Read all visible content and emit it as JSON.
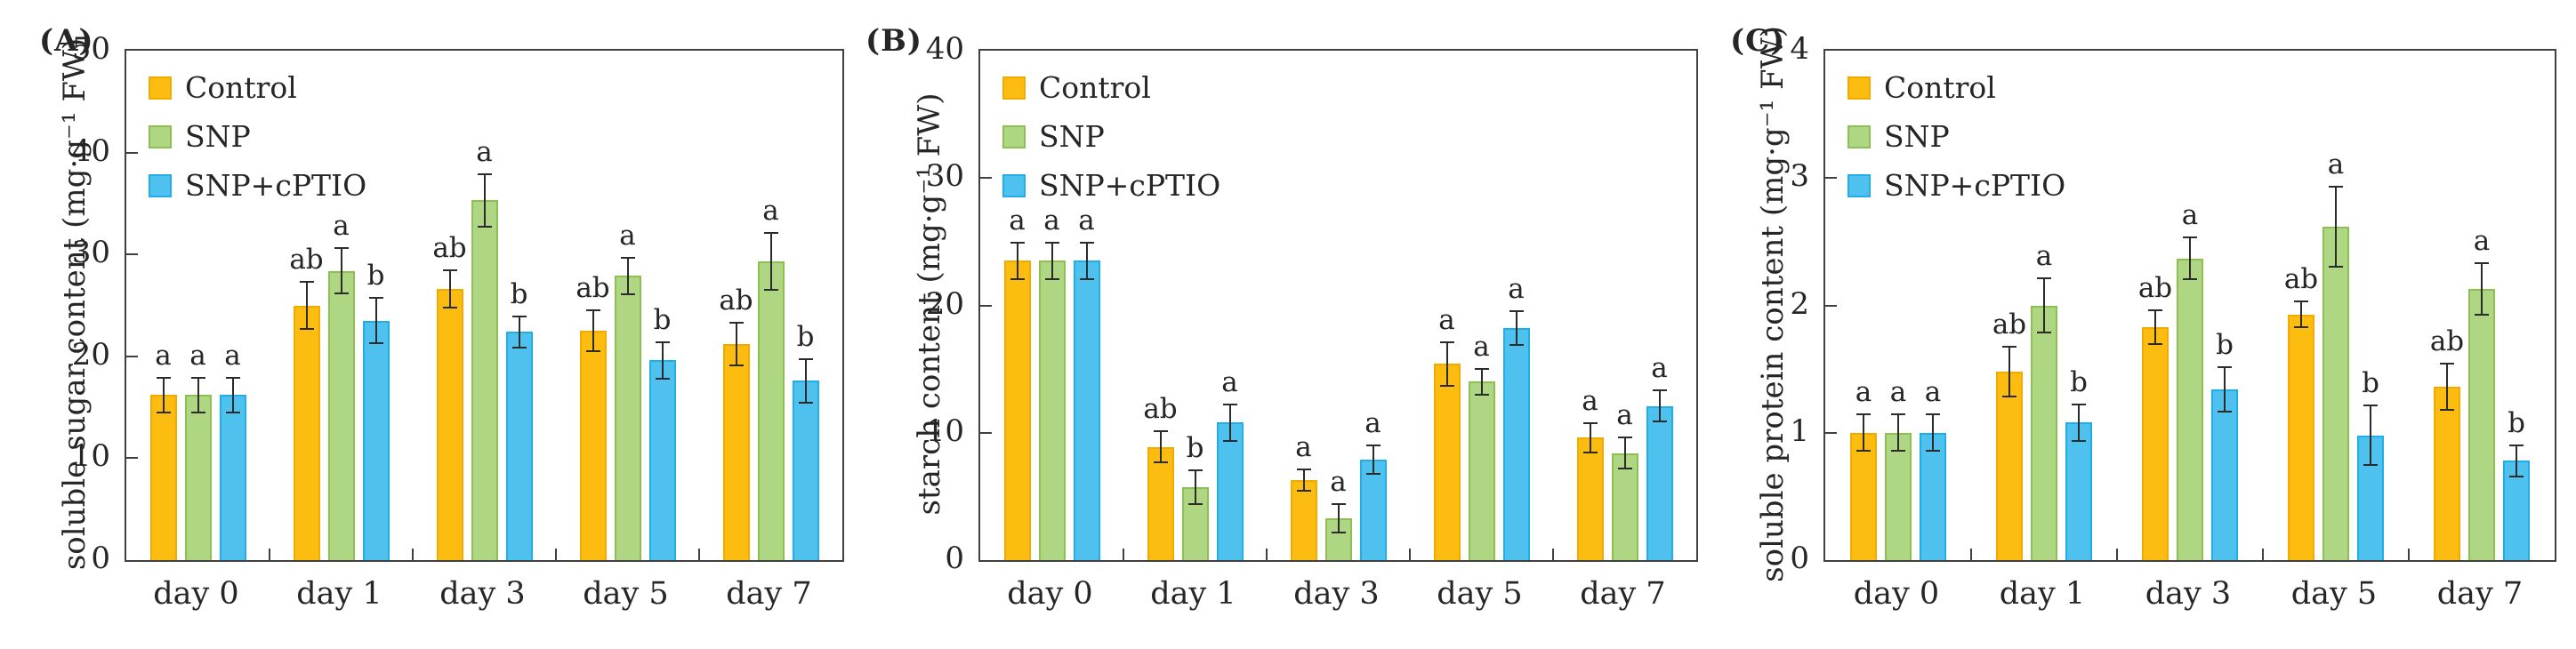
{
  "figure": {
    "background": "#ffffff",
    "axis_color": "#404040",
    "text_color": "#262626",
    "legend": {
      "position": "top-left",
      "items": [
        {
          "label": "Control",
          "fill": "#FDBD10",
          "border": "#F2A900"
        },
        {
          "label": "SNP",
          "fill": "#AFD683",
          "border": "#8CC152"
        },
        {
          "label": "SNP+cPTIO",
          "fill": "#4EC1EE",
          "border": "#1FAEE8"
        }
      ]
    }
  },
  "chart_data": [
    {
      "type": "bar",
      "panel_label": "(A)",
      "ylabel": "soluble sugar content (mg·g⁻¹ FW)",
      "ylim": [
        0,
        50
      ],
      "yticks": [
        0,
        10,
        20,
        30,
        40,
        50
      ],
      "categories": [
        "day 0",
        "day 1",
        "day 3",
        "day 5",
        "day 7"
      ],
      "grid": false,
      "legend_position": "top-left",
      "series": [
        {
          "name": "Control",
          "values": [
            16.2,
            25.0,
            26.6,
            22.5,
            21.2
          ],
          "errors": [
            1.8,
            2.4,
            1.9,
            2.1,
            2.2
          ],
          "sig_letters": [
            "a",
            "ab",
            "ab",
            "ab",
            "ab"
          ]
        },
        {
          "name": "SNP",
          "values": [
            16.2,
            28.4,
            35.3,
            27.9,
            29.3
          ],
          "errors": [
            1.8,
            2.3,
            2.7,
            1.9,
            2.9
          ],
          "sig_letters": [
            "a",
            "a",
            "a",
            "a",
            "a"
          ]
        },
        {
          "name": "SNP+cPTIO",
          "values": [
            16.2,
            23.5,
            22.4,
            19.6,
            17.6
          ],
          "errors": [
            1.8,
            2.3,
            1.6,
            1.9,
            2.2
          ],
          "sig_letters": [
            "a",
            "b",
            "b",
            "b",
            "b"
          ]
        }
      ]
    },
    {
      "type": "bar",
      "panel_label": "(B)",
      "ylabel": "starch content (mg·g⁻¹ FW)",
      "ylim": [
        0,
        40
      ],
      "yticks": [
        0,
        10,
        20,
        30,
        40
      ],
      "categories": [
        "day 0",
        "day 1",
        "day 3",
        "day 5",
        "day 7"
      ],
      "grid": false,
      "legend_position": "top-left",
      "series": [
        {
          "name": "Control",
          "values": [
            23.5,
            8.9,
            6.3,
            15.4,
            9.6
          ],
          "errors": [
            1.5,
            1.3,
            0.9,
            1.8,
            1.2
          ],
          "sig_letters": [
            "a",
            "ab",
            "a",
            "a",
            "a"
          ]
        },
        {
          "name": "SNP",
          "values": [
            23.5,
            5.7,
            3.3,
            14.0,
            8.4
          ],
          "errors": [
            1.5,
            1.4,
            1.2,
            1.1,
            1.3
          ],
          "sig_letters": [
            "a",
            "b",
            "a",
            "a",
            "a"
          ]
        },
        {
          "name": "SNP+cPTIO",
          "values": [
            23.5,
            10.8,
            7.9,
            18.2,
            12.1
          ],
          "errors": [
            1.5,
            1.5,
            1.2,
            1.4,
            1.3
          ],
          "sig_letters": [
            "a",
            "a",
            "a",
            "a",
            "a"
          ]
        }
      ]
    },
    {
      "type": "bar",
      "panel_label": "(C)",
      "ylabel": "soluble protein content (mg·g⁻¹ FW)",
      "ylim": [
        0,
        4
      ],
      "yticks": [
        0,
        1,
        2,
        3,
        4
      ],
      "categories": [
        "day 0",
        "day 1",
        "day 3",
        "day 5",
        "day 7"
      ],
      "grid": false,
      "legend_position": "top-left",
      "series": [
        {
          "name": "Control",
          "values": [
            1.0,
            1.48,
            1.83,
            1.93,
            1.36
          ],
          "errors": [
            0.15,
            0.2,
            0.14,
            0.11,
            0.19
          ],
          "sig_letters": [
            "a",
            "ab",
            "ab",
            "ab",
            "ab"
          ]
        },
        {
          "name": "SNP",
          "values": [
            1.0,
            2.0,
            2.37,
            2.62,
            2.13
          ],
          "errors": [
            0.15,
            0.22,
            0.17,
            0.32,
            0.21
          ],
          "sig_letters": [
            "a",
            "a",
            "a",
            "a",
            "a"
          ]
        },
        {
          "name": "SNP+cPTIO",
          "values": [
            1.0,
            1.08,
            1.34,
            0.98,
            0.78
          ],
          "errors": [
            0.15,
            0.15,
            0.18,
            0.24,
            0.13
          ],
          "sig_letters": [
            "a",
            "b",
            "b",
            "b",
            "b"
          ]
        }
      ]
    }
  ]
}
